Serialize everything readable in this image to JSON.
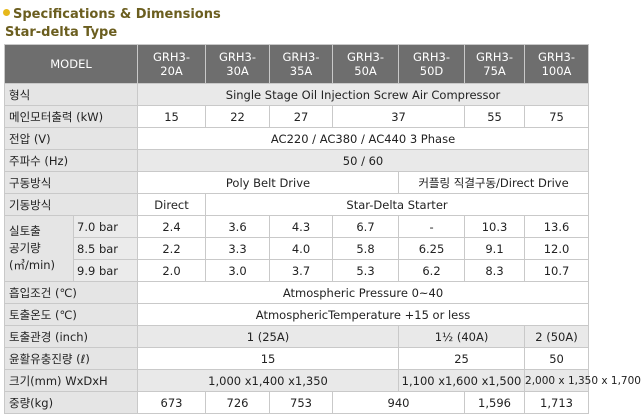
{
  "title": "Specifications & Dimensions",
  "subtitle": "Star-delta Type",
  "columns": {
    "model": "MODEL",
    "m1": "GRH3-\n20A",
    "m2": "GRH3-\n30A",
    "m3": "GRH3-\n35A",
    "m4": "GRH3-\n50A",
    "m5": "GRH3-\n50D",
    "m6": "GRH3-\n75A",
    "m7": "GRH3-\n100A"
  },
  "rows": {
    "type": {
      "label": "형식",
      "value": "Single Stage Oil Injection Screw Air Compressor"
    },
    "motor": {
      "label": "메인모터출력 (kW)",
      "v1": "15",
      "v2": "22",
      "v3": "27",
      "v4": "37",
      "v6": "55",
      "v7": "75"
    },
    "voltage": {
      "label": "전압 (V)",
      "value": "AC220 / AC380 / AC440 3 Phase"
    },
    "freq": {
      "label": "주파수 (Hz)",
      "value": "50 / 60"
    },
    "drive": {
      "label": "구동방식",
      "v1": "Poly Belt Drive",
      "v2": "커플링 직결구동/Direct Drive"
    },
    "start": {
      "label": "기동방식",
      "v1": "Direct",
      "v2": "Star-Delta Starter"
    },
    "delivery": {
      "label": "실토출\n공기량\n(㎥/min)",
      "r1": {
        "bar": "7.0 bar",
        "vals": [
          "2.4",
          "3.6",
          "4.3",
          "6.7",
          "-",
          "10.3",
          "13.6"
        ]
      },
      "r2": {
        "bar": "8.5 bar",
        "vals": [
          "2.2",
          "3.3",
          "4.0",
          "5.8",
          "6.25",
          "9.1",
          "12.0"
        ]
      },
      "r3": {
        "bar": "9.9 bar",
        "vals": [
          "2.0",
          "3.0",
          "3.7",
          "5.3",
          "6.2",
          "8.3",
          "10.7"
        ]
      }
    },
    "intake": {
      "label": "흡입조건 (℃)",
      "value": "Atmospheric Pressure 0~40"
    },
    "discharge_temp": {
      "label": "토출온도 (℃)",
      "value": "AtmosphericTemperature +15 or less"
    },
    "pipe": {
      "label": "토출관경 (inch)",
      "v1": "1 (25A)",
      "v2": "1½ (40A)",
      "v3": "2 (50A)"
    },
    "oil": {
      "label": "윤활유충진량 (ℓ)",
      "v1": "15",
      "v2": "25",
      "v3": "50"
    },
    "size": {
      "label": "크기(mm) WxDxH",
      "v1": "1,000 x1,400 x1,350",
      "v2": "1,100 x1,600 x1,500",
      "v3": "2,000 x 1,350 x 1,700"
    },
    "weight": {
      "label": "중량(kg)",
      "v1": "673",
      "v2": "726",
      "v3": "753",
      "v4": "940",
      "v6": "1,596",
      "v7": "1,713"
    }
  }
}
